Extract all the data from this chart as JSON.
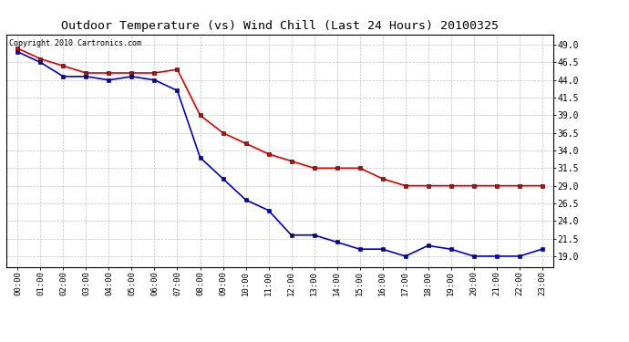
{
  "title": "Outdoor Temperature (vs) Wind Chill (Last 24 Hours) 20100325",
  "copyright_text": "Copyright 2010 Cartronics.com",
  "x_labels": [
    "00:00",
    "01:00",
    "02:00",
    "03:00",
    "04:00",
    "05:00",
    "06:00",
    "07:00",
    "08:00",
    "09:00",
    "10:00",
    "11:00",
    "12:00",
    "13:00",
    "14:00",
    "15:00",
    "16:00",
    "17:00",
    "18:00",
    "19:00",
    "20:00",
    "21:00",
    "22:00",
    "23:00"
  ],
  "temp_red": [
    48.5,
    47.0,
    46.0,
    45.0,
    45.0,
    45.0,
    45.0,
    45.5,
    39.0,
    36.5,
    35.0,
    33.5,
    32.5,
    31.5,
    31.5,
    31.5,
    30.0,
    29.0,
    29.0,
    29.0,
    29.0,
    29.0,
    29.0,
    29.0
  ],
  "wind_chill_blue": [
    48.0,
    46.5,
    44.5,
    44.5,
    44.0,
    44.5,
    44.0,
    42.5,
    33.0,
    30.0,
    27.0,
    25.5,
    22.0,
    22.0,
    21.0,
    20.0,
    20.0,
    19.0,
    20.5,
    20.0,
    19.0,
    19.0,
    19.0,
    20.0
  ],
  "y_ticks": [
    19.0,
    21.5,
    24.0,
    26.5,
    29.0,
    31.5,
    34.0,
    36.5,
    39.0,
    41.5,
    44.0,
    46.5,
    49.0
  ],
  "ylim": [
    17.5,
    50.5
  ],
  "bg_color": "#ffffff",
  "grid_color": "#bbbbbb",
  "red_color": "#dd0000",
  "blue_color": "#0000cc",
  "title_fontsize": 9.5,
  "copyright_fontsize": 6,
  "tick_fontsize": 6.5,
  "ytick_fontsize": 7
}
